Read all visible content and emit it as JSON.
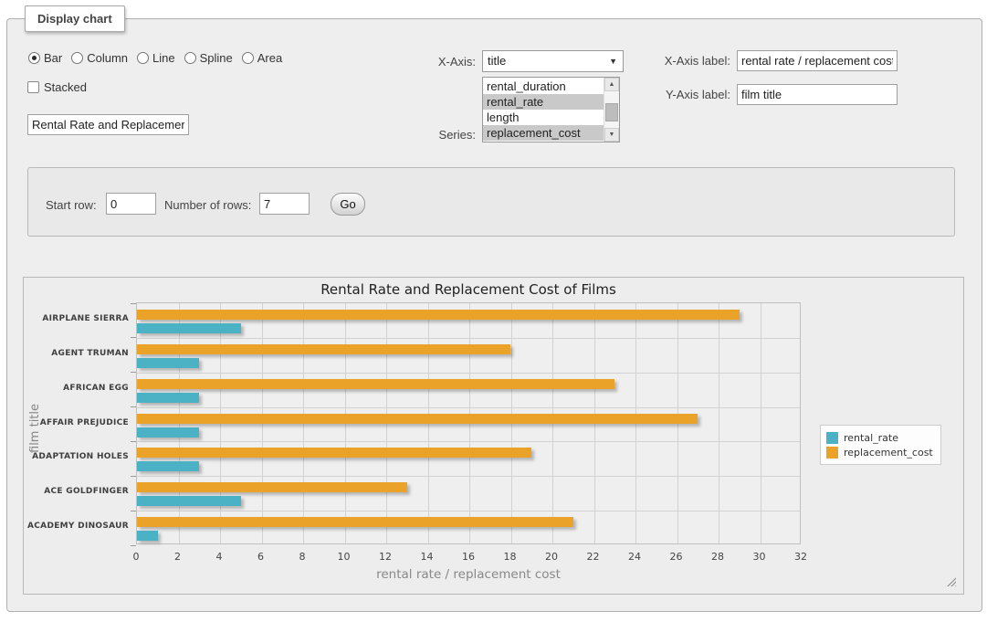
{
  "icons": {
    "select_arrow": "▼",
    "scroll_up": "▲",
    "scroll_down": "▼"
  },
  "panel": {
    "legend": "Display chart",
    "chart_types": [
      {
        "label": "Bar",
        "selected": true
      },
      {
        "label": "Column",
        "selected": false
      },
      {
        "label": "Line",
        "selected": false
      },
      {
        "label": "Spline",
        "selected": false
      },
      {
        "label": "Area",
        "selected": false
      }
    ],
    "stacked_label": "Stacked",
    "stacked_checked": false,
    "title_input_value": "Rental Rate and Replacement Cost of Films",
    "x_axis": {
      "label": "X-Axis:",
      "selected": "title"
    },
    "series": {
      "label": "Series:",
      "options": [
        {
          "label": "rental_duration",
          "selected": false
        },
        {
          "label": "rental_rate",
          "selected": true
        },
        {
          "label": "length",
          "selected": false
        },
        {
          "label": "replacement_cost",
          "selected": true
        }
      ]
    },
    "x_axis_label_field": {
      "label": "X-Axis label:",
      "value": "rental rate / replacement cost"
    },
    "y_axis_label_field": {
      "label": "Y-Axis label:",
      "value": "film title"
    }
  },
  "row_controls": {
    "start_row_label": "Start row:",
    "start_row_value": "0",
    "num_rows_label": "Number of rows:",
    "num_rows_value": "7",
    "go_label": "Go"
  },
  "chart_data": {
    "type": "bar",
    "orientation": "horizontal",
    "title": "Rental Rate and Replacement Cost of Films",
    "categories": [
      "AIRPLANE SIERRA",
      "AGENT TRUMAN",
      "AFRICAN EGG",
      "AFFAIR PREJUDICE",
      "ADAPTATION HOLES",
      "ACE GOLDFINGER",
      "ACADEMY DINOSAUR"
    ],
    "series": [
      {
        "name": "rental_rate",
        "color": "#4bb2c5",
        "values": [
          4.99,
          2.99,
          2.99,
          2.99,
          2.99,
          4.99,
          0.99
        ]
      },
      {
        "name": "replacement_cost",
        "color": "#eaa228",
        "values": [
          28.99,
          17.99,
          22.99,
          26.99,
          18.99,
          12.99,
          20.99
        ]
      }
    ],
    "xlabel": "rental rate / replacement cost",
    "ylabel": "film title",
    "xlim": [
      0,
      32
    ],
    "xticks": [
      0,
      2,
      4,
      6,
      8,
      10,
      12,
      14,
      16,
      18,
      20,
      22,
      24,
      26,
      28,
      30,
      32
    ],
    "legend_position": "right",
    "grid": true
  }
}
